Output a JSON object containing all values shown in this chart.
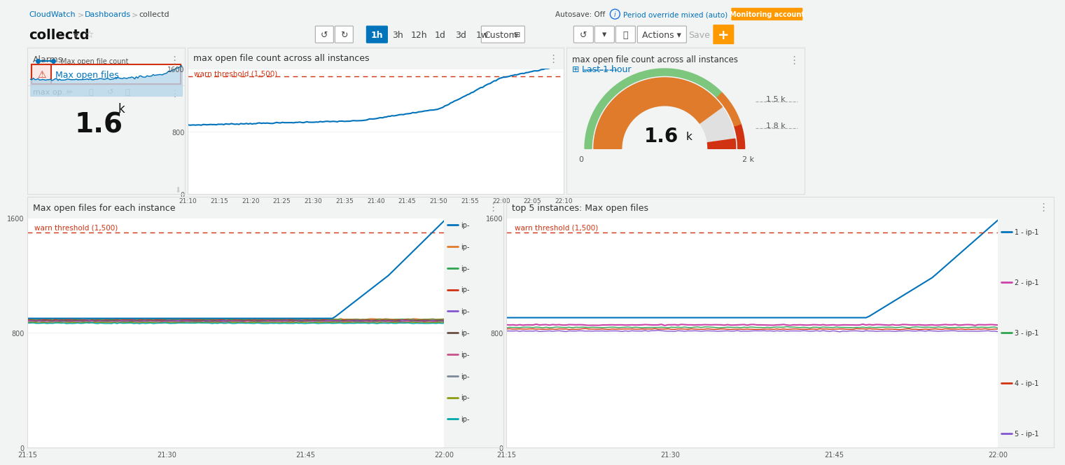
{
  "bg_color": "#f2f3f3",
  "panel_bg": "#ffffff",
  "nav_bg": "#ffffff",
  "nav_border": "#e5e5e5",
  "title_color": "#16191f",
  "subtitle_color": "#687078",
  "link_color": "#0073bb",
  "warn_color": "#d13212",
  "alarm_title": "Alarms",
  "alarm_name": "Max open files",
  "metric_widget_title": "max op...",
  "metric_legend": "Max open file count",
  "chart1_title": "max open file count across all instances",
  "chart1_warn_threshold": 1500,
  "chart1_warn_label": "warn threshold (1,500)",
  "chart1_ylim": [
    0,
    1600
  ],
  "chart1_yticks": [
    0,
    800,
    1600
  ],
  "chart1_times": [
    "21:10",
    "21:15",
    "21:20",
    "21:25",
    "21:30",
    "21:35",
    "21:40",
    "21:45",
    "21:50",
    "21:55",
    "22:00",
    "22:05",
    "22:10"
  ],
  "chart1_color": "#0073bb",
  "gauge_title": "max open file count across all instances",
  "gauge_subtitle": "Last 1 hour",
  "chart3_title": "Max open files for each instance",
  "chart3_warn_threshold": 1500,
  "chart3_warn_label": "warn threshold (1,500)",
  "chart3_ylim": [
    0,
    1600
  ],
  "chart3_yticks": [
    0,
    800,
    1600
  ],
  "chart3_times": [
    "21:15",
    "21:30",
    "21:45",
    "22:00"
  ],
  "chart3_colors": [
    "#0073bb",
    "#e07b2b",
    "#2da44e",
    "#d13212",
    "#8456ce",
    "#6b4c41",
    "#c7538a",
    "#7d8998",
    "#8a9c0f",
    "#00a8a8"
  ],
  "chart3_legend_labels": [
    "ip-",
    "ip-",
    "ip-",
    "ip-",
    "ip-",
    "ip-",
    "ip-",
    "ip-",
    "ip-",
    "ip-"
  ],
  "chart4_title": "top 5 instances: Max open files",
  "chart4_warn_threshold": 1500,
  "chart4_warn_label": "warn threshold (1,500)",
  "chart4_ylim": [
    0,
    1600
  ],
  "chart4_yticks": [
    0,
    800,
    1600
  ],
  "chart4_times": [
    "21:15",
    "21:30",
    "21:45",
    "22:00"
  ],
  "chart4_colors": [
    "#0073bb",
    "#e07b2b",
    "#2da44e",
    "#d13212",
    "#8456ce"
  ],
  "chart4_legend_labels": [
    "1 - ip-1",
    "2 - ip-1",
    "3 - ip-1",
    "4 - ip-1",
    "5 - ip-1"
  ]
}
